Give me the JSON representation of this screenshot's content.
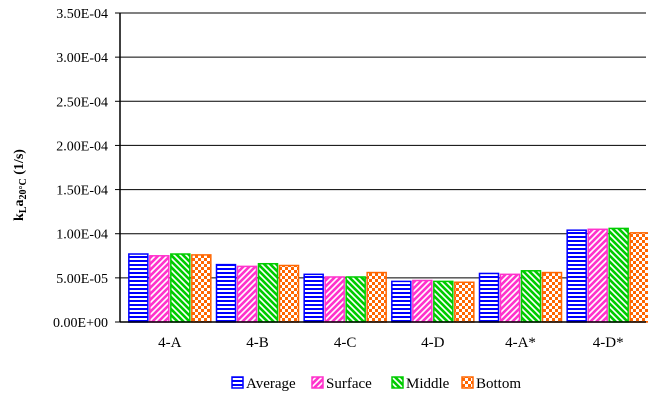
{
  "chart_data": {
    "type": "bar",
    "title": "",
    "xlabel": "",
    "ylabel": {
      "base": "k",
      "sub1": "L",
      "mid": "a",
      "sub2": "20°C",
      "unit": " (1/s)"
    },
    "ylim": [
      0,
      0.00035
    ],
    "yticks": [
      0,
      5e-05,
      0.0001,
      0.00015,
      0.0002,
      0.00025,
      0.0003,
      0.00035
    ],
    "ytick_labels": [
      "0.00E+00",
      "5.00E-05",
      "1.00E-04",
      "1.50E-04",
      "2.00E-04",
      "2.50E-04",
      "3.00E-04",
      "3.50E-04"
    ],
    "grid": true,
    "legend_position": "bottom",
    "categories": [
      "4-A",
      "4-B",
      "4-C",
      "4-D",
      "4-A*",
      "4-D*"
    ],
    "series": [
      {
        "name": "Average",
        "color": "#0000ff",
        "pattern": "horizontal-lines",
        "values": [
          7.7e-05,
          6.5e-05,
          5.4e-05,
          4.6e-05,
          5.5e-05,
          0.000104
        ]
      },
      {
        "name": "Surface",
        "color": "#ff33cc",
        "pattern": "wide-upward-diagonal",
        "values": [
          7.5e-05,
          6.3e-05,
          5.1e-05,
          4.7e-05,
          5.4e-05,
          0.000105
        ]
      },
      {
        "name": "Middle",
        "color": "#00cc00",
        "pattern": "wide-downward-diagonal",
        "values": [
          7.7e-05,
          6.6e-05,
          5.1e-05,
          4.6e-05,
          5.8e-05,
          0.000106
        ]
      },
      {
        "name": "Bottom",
        "color": "#ff6600",
        "pattern": "checkerboard",
        "values": [
          7.6e-05,
          6.4e-05,
          5.6e-05,
          4.5e-05,
          5.6e-05,
          0.000101
        ]
      }
    ]
  }
}
